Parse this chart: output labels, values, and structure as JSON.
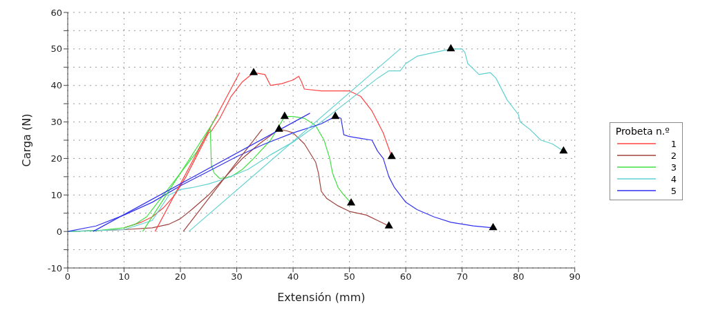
{
  "chart_data": {
    "type": "line",
    "xlabel": "Extensión (mm)",
    "ylabel": "Carga (N)",
    "legend_title": "Probeta n.º",
    "legend": "right",
    "grid": true,
    "marker": "none",
    "line_style": "solid",
    "xlim": [
      0,
      90
    ],
    "xticks": [
      0,
      10,
      20,
      30,
      40,
      50,
      60,
      70,
      80,
      90
    ],
    "ylim": [
      -10,
      60
    ],
    "yticks": [
      -10,
      {
        "value": -5,
        "label": null
      },
      0,
      {
        "value": 5,
        "label": null
      },
      10,
      {
        "value": 15,
        "label": null
      },
      20,
      {
        "value": 25,
        "label": null
      },
      30,
      {
        "value": 35,
        "label": null
      },
      40,
      {
        "value": 45,
        "label": null
      },
      50,
      {
        "value": 55,
        "label": null
      },
      60
    ],
    "series": [
      {
        "name": "1",
        "color": "#ff4040",
        "x": [
          10,
          13,
          15,
          17,
          19,
          21,
          23,
          25,
          25.5,
          27,
          29,
          31,
          33,
          35,
          36,
          38,
          40,
          41,
          41.5,
          42,
          45,
          50,
          52,
          54,
          56,
          57.5
        ],
        "values": [
          1,
          2.5,
          4,
          6.5,
          10,
          15,
          21,
          27,
          27.5,
          31,
          37,
          41,
          43.5,
          43,
          40,
          40.5,
          41.5,
          42.5,
          41,
          39,
          38.5,
          38.5,
          37,
          33,
          27,
          20.5
        ]
      },
      {
        "name": "2",
        "color": "#a0403c",
        "x": [
          0,
          10,
          15,
          18,
          20,
          22,
          25,
          28,
          31,
          34,
          37.5,
          39,
          40,
          42,
          44,
          44.5,
          45,
          46,
          48,
          50,
          53,
          55,
          57
        ],
        "values": [
          0,
          0.5,
          1,
          2,
          3.5,
          6,
          10,
          15,
          20,
          24,
          28,
          27.5,
          27,
          24,
          19,
          16,
          11,
          9,
          7,
          5.5,
          4.5,
          3,
          1.5
        ]
      },
      {
        "name": "3",
        "color": "#40e040",
        "x": [
          0,
          5,
          10,
          12,
          14,
          15,
          17,
          20,
          23,
          25,
          25.3,
          25.5,
          26,
          27,
          29,
          31,
          33,
          36,
          38.5,
          40,
          42,
          44,
          45.5,
          46.5,
          47,
          48,
          49,
          50.3
        ],
        "values": [
          0,
          0.2,
          1,
          2,
          4,
          6,
          10,
          16,
          22,
          27.5,
          28,
          18,
          16,
          14.5,
          15,
          17,
          20,
          25,
          31.5,
          31.5,
          31,
          29,
          25,
          20,
          16,
          12,
          10,
          7.8
        ]
      },
      {
        "name": "4",
        "color": "#60d0d0",
        "x": [
          0,
          10,
          15,
          18,
          20,
          22,
          25,
          28,
          32,
          36,
          40,
          45,
          50,
          55,
          57,
          59,
          60,
          62,
          65,
          68,
          70,
          70.5,
          71,
          73,
          75,
          76,
          78,
          80,
          80.3,
          82,
          84,
          86,
          88
        ],
        "values": [
          0,
          0.5,
          3,
          10,
          11.5,
          12,
          13,
          14.5,
          17,
          21,
          24.5,
          30,
          36,
          42,
          44,
          44,
          46,
          48,
          49,
          50,
          50,
          49,
          46,
          43,
          43.5,
          42,
          36,
          32,
          30,
          28,
          25,
          24,
          22
        ]
      },
      {
        "name": "5",
        "color": "#3030f0",
        "x": [
          0,
          5,
          10,
          15,
          20,
          25,
          30,
          35,
          40,
          45,
          47.5,
          48.5,
          49,
          50,
          52,
          54,
          55,
          56,
          57,
          58,
          60,
          62,
          65,
          68,
          72,
          75.5
        ],
        "values": [
          0,
          1.5,
          4.5,
          8,
          12.5,
          16.5,
          20.5,
          24,
          27,
          29.5,
          31.5,
          31,
          26.5,
          26,
          25.5,
          25,
          22,
          20,
          15,
          12,
          8,
          6,
          4,
          2.5,
          1.5,
          1
        ]
      },
      {
        "type": "line",
        "color": "#ff4040",
        "x": [
          15.5,
          30.5
        ],
        "values": [
          0,
          43.5
        ]
      },
      {
        "type": "line",
        "color": "#a0403c",
        "x": [
          20.5,
          34.5
        ],
        "values": [
          0,
          28
        ]
      },
      {
        "type": "line",
        "color": "#40e040",
        "x": [
          13.3,
          26.7
        ],
        "values": [
          0,
          32
        ]
      },
      {
        "type": "line",
        "color": "#60d0d0",
        "x": [
          21.5,
          59
        ],
        "values": [
          0,
          50
        ]
      },
      {
        "type": "line",
        "color": "#3030f0",
        "x": [
          4.5,
          43
        ],
        "values": [
          0,
          32.4
        ]
      },
      {
        "type": "scatter",
        "marker": "triangle",
        "color": "#000000",
        "x": [
          33,
          57.5,
          37.5,
          57,
          38.5,
          50.3,
          68,
          88,
          47.5,
          75.5
        ],
        "values": [
          43.5,
          20.5,
          28,
          1.5,
          31.5,
          7.8,
          50,
          22,
          31.5,
          1
        ]
      }
    ]
  }
}
